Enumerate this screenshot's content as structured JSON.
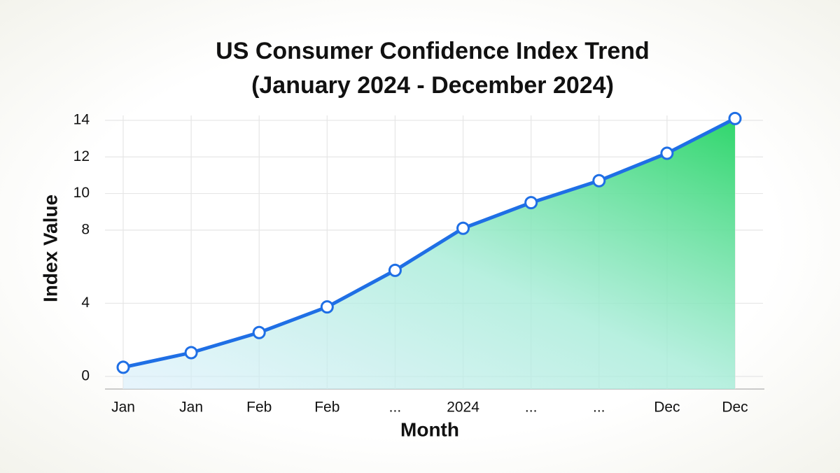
{
  "chart_data": {
    "type": "area_line",
    "title": "US Consumer Confidence Index Trend",
    "subtitle": "(January 2024 - December 2024)",
    "x_label": "Month",
    "y_label": "Index Value",
    "categories": [
      "Jan",
      "Jan",
      "Feb",
      "Feb",
      "...",
      "2024",
      "...",
      "...",
      "Dec",
      "Dec"
    ],
    "values": [
      0.5,
      1.3,
      2.4,
      3.8,
      5.8,
      8.1,
      9.5,
      10.7,
      12.2,
      14.1
    ],
    "color": "#1f6fe5",
    "ylim": [
      0,
      14
    ],
    "yticks": [
      0,
      4,
      8,
      10,
      12,
      14
    ],
    "grid": true
  }
}
